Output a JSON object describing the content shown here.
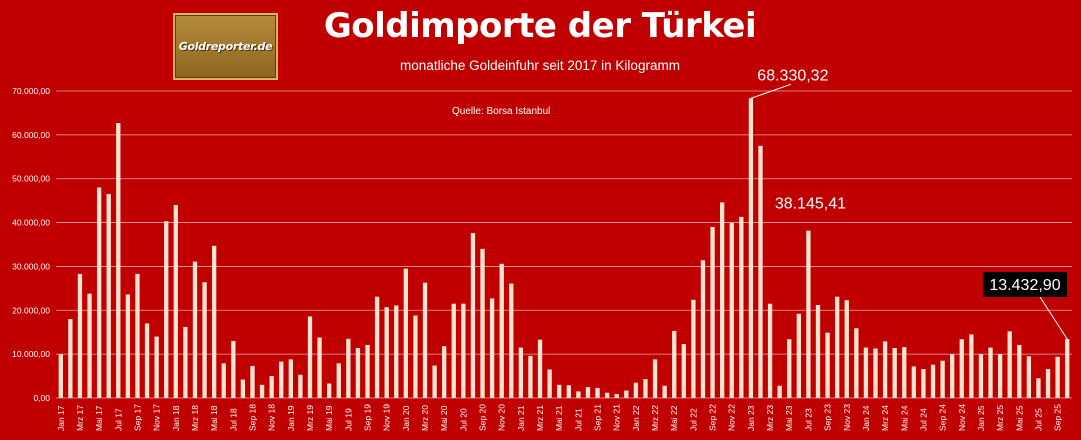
{
  "header": {
    "title": "Goldimporte der Türkei",
    "subtitle": "monatliche Goldeinfuhr seit 2017 in Kilogramm",
    "source": "Quelle: Borsa Istanbul",
    "logo_text": "Goldreporter.de"
  },
  "colors": {
    "background": "#c00000",
    "bar": "#fbe3d1",
    "grid": "#e6a3a3",
    "text": "#ffffff",
    "highlight_box": "#000000",
    "logo_gold": "#a37a2e"
  },
  "chart_data": {
    "type": "bar",
    "title": "Goldimporte der Türkei",
    "subtitle": "monatliche Goldeinfuhr seit 2017 in Kilogramm",
    "xlabel": "",
    "ylabel": "",
    "ylim": [
      0,
      70000
    ],
    "yticks": [
      0,
      10000,
      20000,
      30000,
      40000,
      50000,
      60000,
      70000
    ],
    "ytick_labels": [
      "0,00",
      "10.000,00",
      "20.000,00",
      "30.000,00",
      "40.000,00",
      "50.000,00",
      "60.000,00",
      "70.000,00"
    ],
    "grid": true,
    "legend": "none",
    "categories": [
      "Jan 17",
      "Feb 17",
      "Mrz 17",
      "Apr 17",
      "Mai 17",
      "Jun 17",
      "Jul 17",
      "Aug 17",
      "Sep 17",
      "Okt 17",
      "Nov 17",
      "Dez 17",
      "Jan 18",
      "Feb 18",
      "Mrz 18",
      "Apr 18",
      "Mai 18",
      "Jun 18",
      "Jul 18",
      "Aug 18",
      "Sep 18",
      "Okt 18",
      "Nov 18",
      "Dez 18",
      "Jan 19",
      "Feb 19",
      "Mrz 19",
      "Apr 19",
      "Mai 19",
      "Jun 19",
      "Jul 19",
      "Aug 19",
      "Sep 19",
      "Okt 19",
      "Nov 19",
      "Dez 19",
      "Jan 20",
      "Feb 20",
      "Mrz 20",
      "Apr 20",
      "Mai 20",
      "Jun 20",
      "Jul 20",
      "Aug 20",
      "Sep 20",
      "Okt 20",
      "Nov 20",
      "Dez 20",
      "Jan 21",
      "Feb 21",
      "Mrz 21",
      "Apr 21",
      "Mai 21",
      "Jun 21",
      "Jul 21",
      "Aug 21",
      "Sep 21",
      "Okt 21",
      "Nov 21",
      "Dez 21",
      "Jan 22",
      "Feb 22",
      "Mrz 22",
      "Apr 22",
      "Mai 22",
      "Jun 22",
      "Jul 22",
      "Aug 22",
      "Sep 22",
      "Okt 22",
      "Nov 22",
      "Dez 22",
      "Jan 23",
      "Feb 23",
      "Mrz 23",
      "Apr 23",
      "Mai 23",
      "Jun 23",
      "Jul 23",
      "Aug 23",
      "Sep 23",
      "Okt 23",
      "Nov 23",
      "Dez 23",
      "Jan 24",
      "Feb 24",
      "Mrz 24",
      "Apr 24",
      "Mai 24",
      "Jun 24",
      "Jul 24",
      "Aug 24",
      "Sep 24",
      "Okt 24",
      "Nov 24",
      "Dez 24",
      "Jan 25",
      "Feb 25",
      "Mrz 25",
      "Apr 25",
      "Mai 25",
      "Jun 25",
      "Jul 25",
      "Aug 25",
      "Sep 25",
      "Okt 25"
    ],
    "x_tick_labels_shown": [
      "Jan 17",
      "Mrz 17",
      "Mai 17",
      "Jul 17",
      "Sep 17",
      "Nov 17",
      "Jan 18",
      "Mrz 18",
      "Mai 18",
      "Jul 18",
      "Sep 18",
      "Nov 18",
      "Jan 19",
      "Mrz 19",
      "Mai 19",
      "Jul 19",
      "Sep 19",
      "Nov 19",
      "Jan 20",
      "Mrz 20",
      "Mai 20",
      "Jul 20",
      "Sep 20",
      "Nov 20",
      "Jan 21",
      "Mrz 21",
      "Mai 21",
      "Jul 21",
      "Sep 21",
      "Nov 21",
      "Jan 22",
      "Mrz 22",
      "Mai 22",
      "Jul 22",
      "Sep 22",
      "Nov 22",
      "Jan 23",
      "Mrz 23",
      "Mai 23",
      "Jul 23",
      "Sep 23",
      "Nov 23",
      "Jan 24",
      "Mrz 24",
      "Mai 24",
      "Jul 24",
      "Sep 24",
      "Nov 24",
      "Jan 25",
      "Mrz 25",
      "Mai 25",
      "Jul 25",
      "Sep 25"
    ],
    "values": [
      10000,
      18000,
      28300,
      23800,
      48000,
      46500,
      62700,
      23600,
      28300,
      17000,
      14000,
      40300,
      44000,
      16200,
      31100,
      26400,
      34700,
      7900,
      13000,
      4200,
      7300,
      3000,
      5000,
      8300,
      8800,
      5300,
      18600,
      13800,
      3300,
      7900,
      13500,
      11400,
      12100,
      23100,
      20700,
      21100,
      29500,
      18800,
      26300,
      7400,
      11800,
      21500,
      21500,
      37600,
      34000,
      22700,
      30600,
      26100,
      11500,
      9600,
      13300,
      6500,
      3000,
      2900,
      1500,
      2500,
      2300,
      1200,
      900,
      1700,
      3500,
      4300,
      8800,
      2800,
      15300,
      12300,
      22400,
      31400,
      39000,
      44600,
      40000,
      41300,
      68330.32,
      57500,
      21500,
      2800,
      13400,
      19200,
      38145.41,
      21200,
      14900,
      23100,
      22300,
      15900,
      11500,
      11300,
      12900,
      11400,
      11600,
      7200,
      6600,
      7600,
      8500,
      10000,
      13400,
      14500,
      10000,
      11500,
      10000,
      15200,
      12100,
      9500,
      4500,
      6600,
      9400,
      13432.9
    ],
    "annotations": [
      {
        "label": "68.330,32",
        "category": "Jan 23",
        "value": 68330.32,
        "boxed": false
      },
      {
        "label": "38.145,41",
        "category": "Jul 23",
        "value": 38145.41,
        "boxed": false
      },
      {
        "label": "13.432,90",
        "category": "Okt 25",
        "value": 13432.9,
        "boxed": true
      }
    ]
  }
}
